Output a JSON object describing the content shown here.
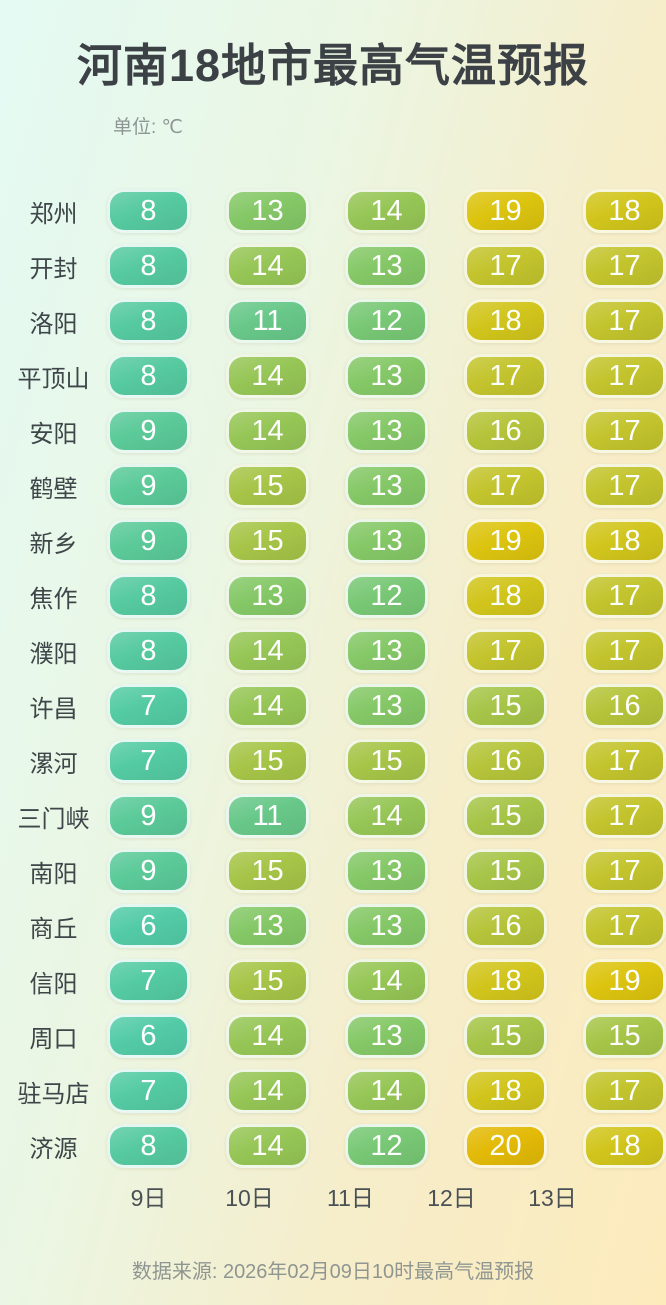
{
  "page": {
    "title": "河南18地市最高气温预报",
    "unit_label": "单位: ℃",
    "source": "数据来源: 2026年02月09日10时最高气温预报"
  },
  "chart_data": {
    "type": "heatmap",
    "title": "河南18地市最高气温预报",
    "unit": "℃",
    "categories": [
      "9日",
      "10日",
      "11日",
      "12日",
      "13日"
    ],
    "series": [
      {
        "name": "郑州",
        "values": [
          8,
          13,
          14,
          19,
          18
        ]
      },
      {
        "name": "开封",
        "values": [
          8,
          14,
          13,
          17,
          17
        ]
      },
      {
        "name": "洛阳",
        "values": [
          8,
          11,
          12,
          18,
          17
        ]
      },
      {
        "name": "平顶山",
        "values": [
          8,
          14,
          13,
          17,
          17
        ]
      },
      {
        "name": "安阳",
        "values": [
          9,
          14,
          13,
          16,
          17
        ]
      },
      {
        "name": "鹤壁",
        "values": [
          9,
          15,
          13,
          17,
          17
        ]
      },
      {
        "name": "新乡",
        "values": [
          9,
          15,
          13,
          19,
          18
        ]
      },
      {
        "name": "焦作",
        "values": [
          8,
          13,
          12,
          18,
          17
        ]
      },
      {
        "name": "濮阳",
        "values": [
          8,
          14,
          13,
          17,
          17
        ]
      },
      {
        "name": "许昌",
        "values": [
          7,
          14,
          13,
          15,
          16
        ]
      },
      {
        "name": "漯河",
        "values": [
          7,
          15,
          15,
          16,
          17
        ]
      },
      {
        "name": "三门峡",
        "values": [
          9,
          11,
          14,
          15,
          17
        ]
      },
      {
        "name": "南阳",
        "values": [
          9,
          15,
          13,
          15,
          17
        ]
      },
      {
        "name": "商丘",
        "values": [
          6,
          13,
          13,
          16,
          17
        ]
      },
      {
        "name": "信阳",
        "values": [
          7,
          15,
          14,
          18,
          19
        ]
      },
      {
        "name": "周口",
        "values": [
          6,
          14,
          13,
          15,
          15
        ]
      },
      {
        "name": "驻马店",
        "values": [
          7,
          14,
          14,
          18,
          17
        ]
      },
      {
        "name": "济源",
        "values": [
          8,
          14,
          12,
          20,
          18
        ]
      }
    ],
    "value_range": [
      6,
      20
    ],
    "legend_position": "none",
    "colors": {
      "background_start": "#e4faf3",
      "background_end": "#fdebbc",
      "title_text": "#3c4145",
      "cell_text": "#ffffff",
      "scale": {
        "6": "#53cba6",
        "7": "#54cba3",
        "8": "#56caa0",
        "9": "#5bca99",
        "10": "#61c991",
        "11": "#68c889",
        "12": "#78c875",
        "13": "#85c867",
        "14": "#96c656",
        "15": "#a6c548",
        "16": "#b5c43a",
        "17": "#c3c42d",
        "18": "#d1c51c",
        "19": "#dcc40f",
        "20": "#e3ba07"
      }
    }
  }
}
